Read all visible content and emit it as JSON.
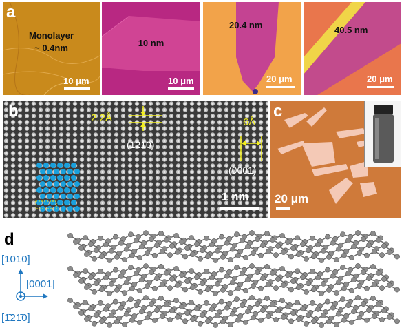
{
  "panel_a": {
    "letter": "a",
    "images": [
      {
        "label_line1": "Monolayer",
        "label_line2": "~ 0.4nm",
        "scale_bar": "10 μm",
        "colors": {
          "bg": "#c98a1c",
          "dark": "#a86a10"
        }
      },
      {
        "label_line1": "10 nm",
        "scale_bar": "10 μm",
        "colors": {
          "bg": "#c02c86",
          "flake": "#d04090"
        }
      },
      {
        "label_line1": "20.4 nm",
        "scale_bar": "20 μm",
        "colors": {
          "bg": "#f2a34a",
          "flake": "#c44392"
        }
      },
      {
        "label_line1": "40.5 nm",
        "scale_bar": "20 μm",
        "colors": {
          "bg": "#e9764c",
          "flake": "#c24b8c",
          "bright": "#f0d548"
        }
      }
    ]
  },
  "panel_b": {
    "letter": "b",
    "dist_vertical": "2.2Å",
    "dir_vertical": "(1̄21̄0)",
    "dist_horizontal": "6Å",
    "dir_horizontal": "(0001)",
    "scale_bar": "1 nm",
    "colors": {
      "annotation": "#f2ee1e",
      "atoms": "#1aa0dc",
      "bg": "#3a3a3a"
    }
  },
  "panel_c": {
    "letter": "c",
    "scale_bar": "20 μm",
    "colors": {
      "bg": "#cf7a3a",
      "flake": "#f4c9b6"
    }
  },
  "panel_d": {
    "letter": "d",
    "axis_up": "[101̄0]",
    "axis_right": "[0001]",
    "axis_out": "[1̄21̄0]",
    "colors": {
      "axis": "#1f77c0",
      "atom": "#8c8c8c"
    }
  }
}
